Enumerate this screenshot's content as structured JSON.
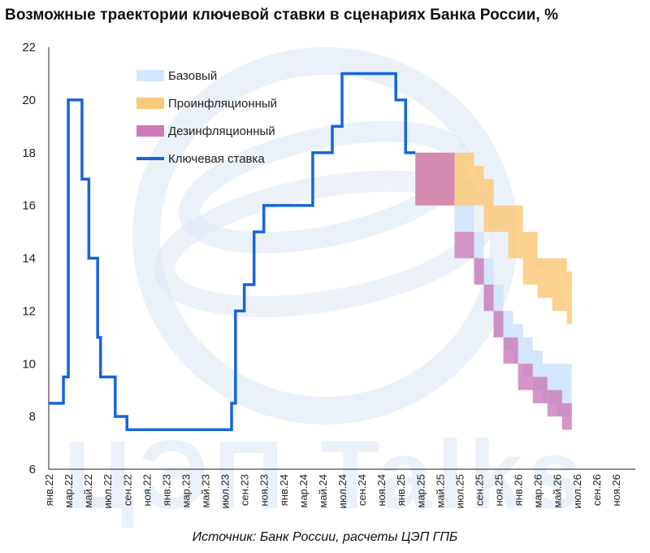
{
  "title": "Возможные траектории ключевой ставки в сценариях Банка России, %",
  "source": "Источник: Банк России, расчеты ЦЭП ГПБ",
  "watermark": "ЦЭП Talks",
  "colors": {
    "key_rate": "#1565d8",
    "base": "#d3e6fb",
    "proinflation": "#fbc97a",
    "disinflation": "#cc7ab8",
    "overlap": "#cd6371",
    "watermark": "#dbe6f3"
  },
  "chart_data": {
    "type": "line",
    "title": "Возможные траектории ключевой ставки в сценариях Банка России, %",
    "xlabel": "",
    "ylabel": "",
    "ylim": [
      6,
      22
    ],
    "yticks": [
      6,
      8,
      10,
      12,
      14,
      16,
      18,
      20,
      22
    ],
    "xlim": [
      0,
      60
    ],
    "xtick_labels": [
      "янв.22",
      "мар.22",
      "май.22",
      "июл.22",
      "сен.22",
      "ноя.22",
      "янв.23",
      "мар.23",
      "май.23",
      "июл.23",
      "сен.23",
      "ноя.23",
      "янв.24",
      "мар.24",
      "май.24",
      "июл.24",
      "сен.24",
      "ноя.24",
      "янв.25",
      "мар.25",
      "май.25",
      "июл.25",
      "сен.25",
      "ноя.25",
      "янв.26",
      "мар.26",
      "май.26",
      "июл.26",
      "сен.26",
      "ноя.26"
    ],
    "legend_position": "top-left",
    "legend": [
      "Базовый",
      "Проинфляционный",
      "Дезинфляционный",
      "Ключевая ставка"
    ],
    "key_rate": [
      [
        0,
        8.5
      ],
      [
        1.5,
        9.5
      ],
      [
        2,
        20
      ],
      [
        3.4,
        17
      ],
      [
        4.1,
        14
      ],
      [
        5,
        11
      ],
      [
        5.3,
        9.5
      ],
      [
        6.8,
        8
      ],
      [
        8,
        7.5
      ],
      [
        18.7,
        8.5
      ],
      [
        19.1,
        12
      ],
      [
        20,
        13
      ],
      [
        21,
        15
      ],
      [
        22,
        16
      ],
      [
        27,
        18
      ],
      [
        29,
        19
      ],
      [
        30,
        21
      ],
      [
        35.5,
        20
      ],
      [
        36.5,
        18
      ],
      [
        37.5,
        18
      ]
    ],
    "bands": {
      "base": [
        {
          "from": 37.5,
          "to": 41.5,
          "low": 16,
          "high": 18
        },
        {
          "from": 41.5,
          "to": 43.5,
          "low": 15,
          "high": 17
        },
        {
          "from": 43.5,
          "to": 44.5,
          "low": 13,
          "high": 15
        },
        {
          "from": 44.5,
          "to": 45.5,
          "low": 12,
          "high": 14
        },
        {
          "from": 45.5,
          "to": 46.5,
          "low": 11,
          "high": 13
        },
        {
          "from": 46.5,
          "to": 47.5,
          "low": 10.5,
          "high": 12
        },
        {
          "from": 47.5,
          "to": 48.5,
          "low": 10,
          "high": 11.5
        },
        {
          "from": 48.5,
          "to": 49.5,
          "low": 9.5,
          "high": 11
        },
        {
          "from": 49.5,
          "to": 50.5,
          "low": 9,
          "high": 10.5
        },
        {
          "from": 50.5,
          "to": 52,
          "low": 8.5,
          "high": 10
        },
        {
          "from": 52,
          "to": 53.5,
          "low": 8,
          "high": 10
        }
      ],
      "proinflation": [
        {
          "from": 37.5,
          "to": 43.5,
          "low": 16,
          "high": 18
        },
        {
          "from": 43.5,
          "to": 44.5,
          "low": 16,
          "high": 17.5
        },
        {
          "from": 44.5,
          "to": 45.5,
          "low": 15,
          "high": 17
        },
        {
          "from": 45.5,
          "to": 47,
          "low": 15,
          "high": 16
        },
        {
          "from": 47,
          "to": 48.5,
          "low": 14,
          "high": 16
        },
        {
          "from": 48.5,
          "to": 50,
          "low": 13,
          "high": 15
        },
        {
          "from": 50,
          "to": 51.5,
          "low": 12.5,
          "high": 14
        },
        {
          "from": 51.5,
          "to": 53,
          "low": 12,
          "high": 14
        },
        {
          "from": 53,
          "to": 53.5,
          "low": 11.5,
          "high": 13.5
        }
      ],
      "disinflation": [
        {
          "from": 37.5,
          "to": 41.5,
          "low": 16,
          "high": 18
        },
        {
          "from": 41.5,
          "to": 43.5,
          "low": 14,
          "high": 15
        },
        {
          "from": 43.5,
          "to": 44.5,
          "low": 13,
          "high": 14
        },
        {
          "from": 44.5,
          "to": 45.5,
          "low": 12,
          "high": 13
        },
        {
          "from": 45.5,
          "to": 46.5,
          "low": 11,
          "high": 12
        },
        {
          "from": 46.5,
          "to": 48,
          "low": 10,
          "high": 11
        },
        {
          "from": 48,
          "to": 49.5,
          "low": 9,
          "high": 10
        },
        {
          "from": 49.5,
          "to": 51,
          "low": 8.5,
          "high": 9.5
        },
        {
          "from": 51,
          "to": 52.5,
          "low": 8,
          "high": 9
        },
        {
          "from": 52.5,
          "to": 53.5,
          "low": 7.5,
          "high": 8.5
        }
      ]
    }
  }
}
